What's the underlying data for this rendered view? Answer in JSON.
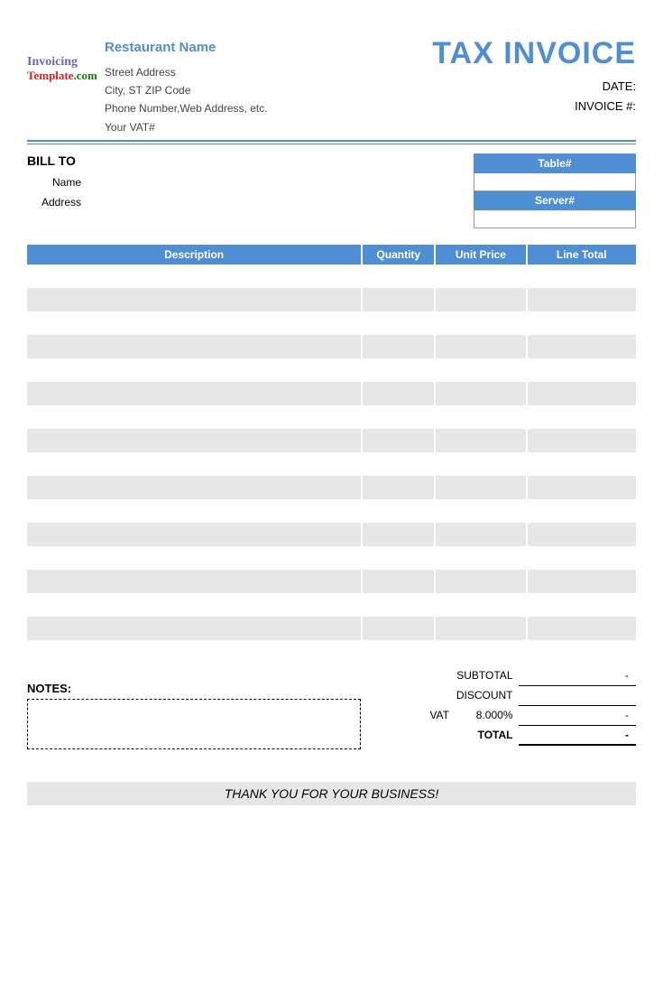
{
  "colors": {
    "accent": "#4f8ed3",
    "row_alt": "#e6e6e6",
    "background": "#ffffff",
    "text": "#000000"
  },
  "logo": {
    "line1": "Invoicing",
    "line2": "Template",
    "line3": ".com"
  },
  "title": "TAX INVOICE",
  "company": {
    "name": "Restaurant Name",
    "street": "Street Address",
    "city": "City, ST  ZIP Code",
    "phone": "Phone Number,Web Address, etc.",
    "vat": "Your VAT#"
  },
  "meta": {
    "date_label": "DATE:",
    "invoice_label": "INVOICE #:"
  },
  "billto": {
    "heading": "BILL TO",
    "name_label": "Name",
    "address_label": "Address"
  },
  "mini": {
    "table_label": "Table#",
    "server_label": "Server#"
  },
  "items_header": {
    "description": "Description",
    "quantity": "Quantity",
    "unit_price": "Unit Price",
    "line_total": "Line Total"
  },
  "items_row_count": 17,
  "totals": {
    "subtotal_label": "SUBTOTAL",
    "discount_label": "DISCOUNT",
    "vat_label": "VAT",
    "vat_rate": "8.000%",
    "total_label": "TOTAL",
    "dash": "-"
  },
  "notes_label": "NOTES:",
  "footer": "THANK YOU FOR YOUR BUSINESS!"
}
